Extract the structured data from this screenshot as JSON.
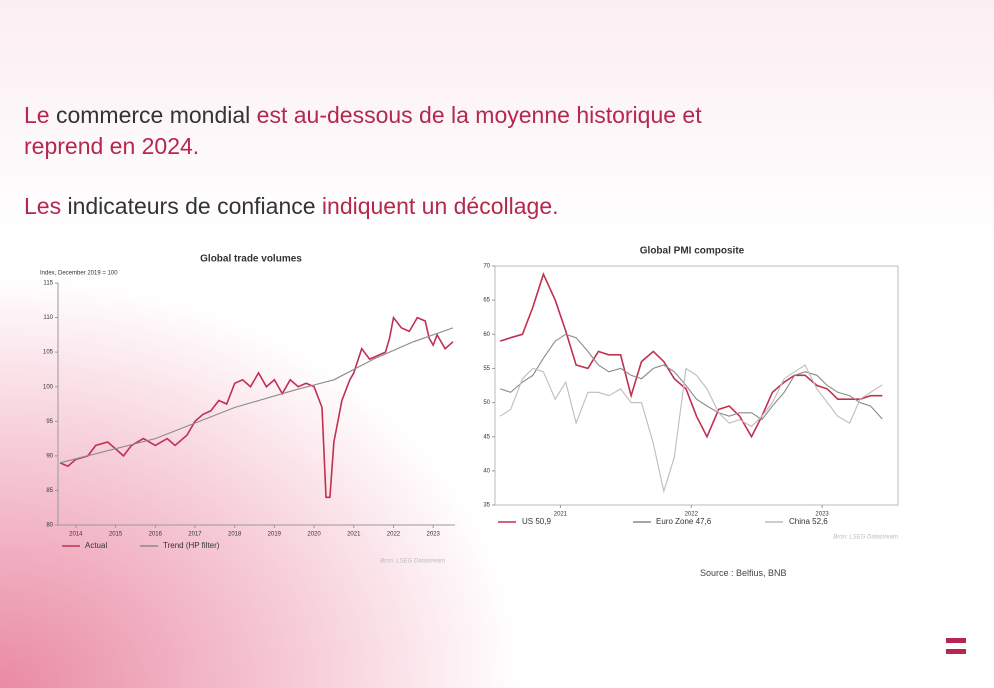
{
  "heading": {
    "lines": [
      {
        "segments": [
          {
            "text": "Le ",
            "tone": "accent"
          },
          {
            "text": "commerce mondial ",
            "tone": "dark"
          },
          {
            "text": "est au-dessous de la moyenne historique et",
            "tone": "accent"
          }
        ]
      },
      {
        "segments": [
          {
            "text": "reprend en 2024.",
            "tone": "accent"
          }
        ]
      },
      {
        "segments": [
          {
            "text": "Les ",
            "tone": "accent"
          },
          {
            "text": "indicateurs de confiance ",
            "tone": "dark"
          },
          {
            "text": "indiquent un décollage.",
            "tone": "accent"
          }
        ]
      }
    ]
  },
  "source": "Source : Belfius, BNB",
  "chart_data": [
    {
      "type": "line",
      "title": "Global trade volumes",
      "y_label": "Index, December 2019 = 100",
      "note": "Bron: LSEG Datastream",
      "xlim": [
        2013.55,
        2023.55
      ],
      "xticks": [
        2014,
        2015,
        2016,
        2017,
        2018,
        2019,
        2020,
        2021,
        2022,
        2023
      ],
      "ylim": [
        80,
        115
      ],
      "yticks": [
        80,
        85,
        90,
        95,
        100,
        105,
        110,
        115
      ],
      "grid": false,
      "series": [
        {
          "name": "Actual",
          "color": "#c0304f",
          "x": [
            2013.6,
            2013.8,
            2014.0,
            2014.3,
            2014.5,
            2014.8,
            2015.0,
            2015.2,
            2015.4,
            2015.7,
            2016.0,
            2016.3,
            2016.5,
            2016.8,
            2017.0,
            2017.2,
            2017.4,
            2017.6,
            2017.8,
            2018.0,
            2018.2,
            2018.4,
            2018.6,
            2018.8,
            2019.0,
            2019.2,
            2019.4,
            2019.6,
            2019.8,
            2020.0,
            2020.2,
            2020.3,
            2020.4,
            2020.5,
            2020.7,
            2020.9,
            2021.0,
            2021.2,
            2021.4,
            2021.6,
            2021.8,
            2021.9,
            2022.0,
            2022.2,
            2022.4,
            2022.6,
            2022.8,
            2022.9,
            2023.0,
            2023.1,
            2023.3,
            2023.5
          ],
          "values": [
            89,
            88.5,
            89.5,
            90,
            91.5,
            92,
            91,
            90,
            91.5,
            92.5,
            91.5,
            92.5,
            91.5,
            93,
            95,
            96,
            96.5,
            98,
            97.5,
            100.5,
            101,
            100,
            102,
            100,
            101,
            99,
            101,
            100,
            100.5,
            100,
            97,
            84,
            84,
            92,
            98,
            101,
            102,
            105.5,
            104,
            104.5,
            105,
            107,
            110,
            108.5,
            108,
            110,
            109.5,
            107,
            106,
            107.5,
            105.5,
            106.5
          ]
        },
        {
          "name": "Trend (HP filter)",
          "color": "#8a8a8a",
          "x": [
            2013.6,
            2016,
            2018,
            2019.5,
            2020.5,
            2021.5,
            2022.5,
            2023.5
          ],
          "values": [
            89,
            92.5,
            97,
            99.5,
            101,
            104,
            106.5,
            108.5
          ]
        }
      ]
    },
    {
      "type": "line",
      "title": "Global PMI composite",
      "note": "Bron: LSEG Datastream",
      "xlim": [
        2020.5,
        2023.58
      ],
      "xticks": [
        2021,
        2022,
        2023
      ],
      "ylim": [
        35,
        70
      ],
      "yticks": [
        35,
        40,
        45,
        50,
        55,
        60,
        65,
        70
      ],
      "grid": false,
      "x": [
        2020.54,
        2020.62,
        2020.71,
        2020.79,
        2020.87,
        2020.96,
        2021.04,
        2021.12,
        2021.21,
        2021.29,
        2021.37,
        2021.46,
        2021.54,
        2021.62,
        2021.71,
        2021.79,
        2021.87,
        2021.96,
        2022.04,
        2022.12,
        2022.21,
        2022.29,
        2022.37,
        2022.46,
        2022.54,
        2022.62,
        2022.71,
        2022.79,
        2022.87,
        2022.96,
        2023.04,
        2023.12,
        2023.21,
        2023.29,
        2023.37,
        2023.46
      ],
      "series": [
        {
          "name": "US 50,9",
          "color": "#c0304f",
          "values": [
            59,
            59.5,
            60,
            64,
            68.8,
            65,
            60.5,
            55.5,
            55,
            57.5,
            57,
            57,
            51,
            56,
            57.5,
            56,
            53.5,
            52,
            48,
            45,
            49,
            49.5,
            48,
            45,
            48,
            51.5,
            53,
            54,
            54,
            52.5,
            52,
            50.5,
            50.5,
            50.5,
            51,
            51
          ]
        },
        {
          "name": "Euro Zone 47,6",
          "color": "#8a8a8a",
          "values": [
            52,
            51.5,
            53,
            54,
            56.5,
            59,
            60,
            59.5,
            57.5,
            55.5,
            54.5,
            55,
            54,
            53.5,
            55,
            55.5,
            54.5,
            52.5,
            50.5,
            49.5,
            48.5,
            48,
            48.5,
            48.5,
            47.5,
            49.5,
            51.5,
            54,
            54.5,
            54,
            52.5,
            51.5,
            51,
            50,
            49.5,
            47.6
          ]
        },
        {
          "name": "China 52,6",
          "color": "#bdbdbd",
          "values": [
            48,
            49,
            53.5,
            55,
            54.5,
            50.5,
            53,
            47,
            51.5,
            51.5,
            51,
            52,
            50,
            50,
            44,
            37,
            42,
            55,
            54,
            52,
            48.5,
            47,
            47.5,
            46.5,
            48,
            50,
            53.5,
            54.5,
            55.5,
            52,
            50,
            48,
            47,
            50.5,
            51.5,
            52.6
          ]
        }
      ]
    }
  ]
}
